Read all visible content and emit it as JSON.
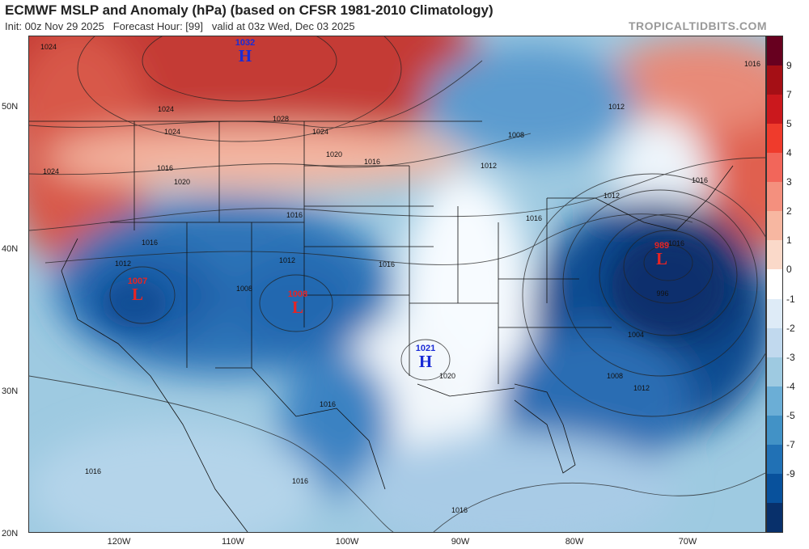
{
  "header": {
    "title": "ECMWF MSLP and Anomaly (hPa) (based on CFSR 1981-2010 Climatology)",
    "init": "Init: 00z Nov 29 2025",
    "forecast_hour": "Forecast Hour: [99]",
    "valid": "valid at 03z Wed, Dec 03 2025",
    "brand": "TROPICALTIDBITS.COM"
  },
  "axes": {
    "lat_labels": [
      "50N",
      "40N",
      "30N",
      "20N"
    ],
    "lon_labels": [
      "120W",
      "110W",
      "100W",
      "90W",
      "80W",
      "70W"
    ]
  },
  "colorbar": {
    "labels": [
      "9",
      "7",
      "5",
      "4",
      "3",
      "2",
      "1",
      "0",
      "-1",
      "-2",
      "-3",
      "-4",
      "-5",
      "-7",
      "-9"
    ],
    "colors": [
      "#67001f",
      "#a50f15",
      "#cb181d",
      "#ef3b2c",
      "#f2665a",
      "#f4907e",
      "#f7b7a1",
      "#fad9c9",
      "#ffffff",
      "#deebf7",
      "#c1d9ee",
      "#9ecae1",
      "#6baed6",
      "#4292c6",
      "#2171b5",
      "#08519c",
      "#08306b"
    ]
  },
  "systems": [
    {
      "type": "H",
      "value": "1032",
      "letter": "H"
    },
    {
      "type": "L",
      "value": "1007",
      "letter": "L"
    },
    {
      "type": "L",
      "value": "1008",
      "letter": "L"
    },
    {
      "type": "H",
      "value": "1021",
      "letter": "H"
    },
    {
      "type": "L",
      "value": "989",
      "letter": "L"
    }
  ],
  "isobar_labels": [
    "1024",
    "1024",
    "1028",
    "1024",
    "1024",
    "1020",
    "1016",
    "1016",
    "1024",
    "1020",
    "1016",
    "1012",
    "1016",
    "1016",
    "1016",
    "1012",
    "1008",
    "1012",
    "1012",
    "1016",
    "1016",
    "1012",
    "1008",
    "1016",
    "1016",
    "1020",
    "996",
    "1004",
    "1008",
    "1012",
    "1016",
    "1016",
    "1016"
  ]
}
